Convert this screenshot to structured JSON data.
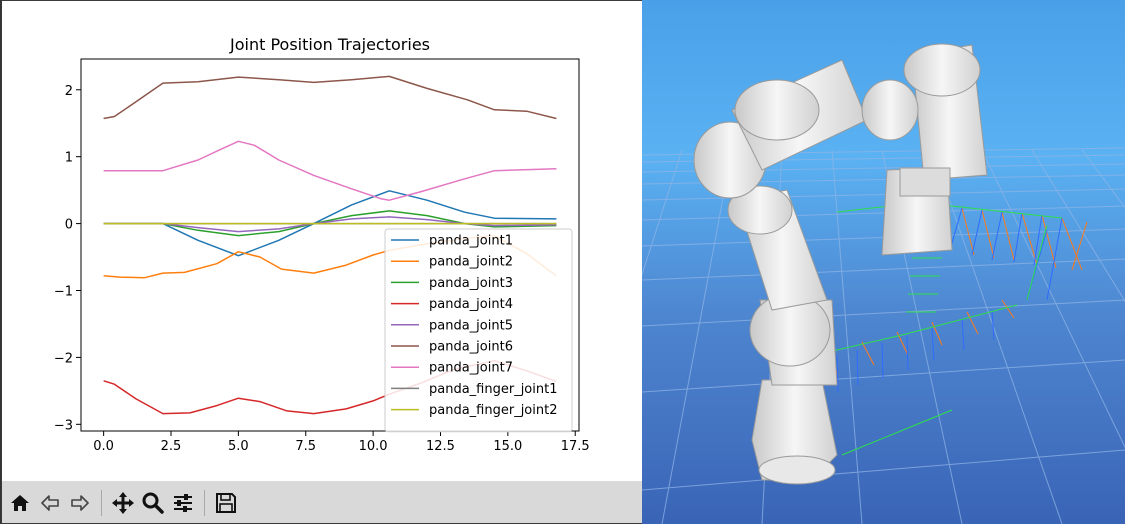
{
  "toolbar": {
    "buttons": [
      {
        "name": "home",
        "icon": "home-icon"
      },
      {
        "name": "back",
        "icon": "back-arrow-icon"
      },
      {
        "name": "forward",
        "icon": "forward-arrow-icon"
      },
      {
        "name": "pan",
        "icon": "move-arrows-icon"
      },
      {
        "name": "zoom",
        "icon": "magnifier-icon"
      },
      {
        "name": "configure-subplots",
        "icon": "sliders-icon"
      },
      {
        "name": "save",
        "icon": "floppy-disk-icon"
      }
    ]
  },
  "chart_data": {
    "type": "line",
    "title": "Joint Position Trajectories",
    "xlabel": "",
    "ylabel": "",
    "xlim": [
      -0.84,
      17.64
    ],
    "ylim": [
      -3.1,
      2.46
    ],
    "xticks": [
      "0.0",
      "2.5",
      "5.0",
      "7.5",
      "10.0",
      "12.5",
      "15.0",
      "17.5"
    ],
    "xtick_values": [
      0,
      2.5,
      5,
      7.5,
      10,
      12.5,
      15,
      17.5
    ],
    "yticks": [
      "2",
      "1",
      "0",
      "−1",
      "−2",
      "−3"
    ],
    "ytick_values": [
      2,
      1,
      0,
      -1,
      -2,
      -3
    ],
    "grid": false,
    "legend_position": "lower-right",
    "series": [
      {
        "name": "panda_joint1",
        "color": "#1f77b4",
        "x": [
          0,
          1,
          2.2,
          3.5,
          5.0,
          6.5,
          7.8,
          9.2,
          10.6,
          12.0,
          13.4,
          14.5,
          16.8
        ],
        "y": [
          0.0,
          0.0,
          0.0,
          -0.25,
          -0.48,
          -0.25,
          0.0,
          0.28,
          0.49,
          0.35,
          0.17,
          0.08,
          0.07
        ]
      },
      {
        "name": "panda_joint2",
        "color": "#ff7f0e",
        "x": [
          0,
          0.6,
          1.5,
          2.2,
          3.0,
          4.2,
          5.0,
          5.8,
          6.6,
          7.8,
          9.0,
          10.0,
          10.6,
          12.0,
          13.5,
          14.5,
          15.7,
          16.8
        ],
        "y": [
          -0.78,
          -0.8,
          -0.81,
          -0.74,
          -0.73,
          -0.6,
          -0.42,
          -0.5,
          -0.68,
          -0.74,
          -0.62,
          -0.47,
          -0.4,
          -0.3,
          -0.22,
          -0.18,
          -0.45,
          -0.78
        ]
      },
      {
        "name": "panda_joint3",
        "color": "#2ca02c",
        "x": [
          0,
          2.2,
          3.5,
          5.0,
          6.5,
          7.8,
          9.2,
          10.6,
          12.0,
          13.4,
          14.5,
          16.8
        ],
        "y": [
          0.0,
          0.0,
          -0.1,
          -0.18,
          -0.12,
          0.0,
          0.12,
          0.19,
          0.12,
          0.0,
          -0.05,
          -0.03
        ]
      },
      {
        "name": "panda_joint4",
        "color": "#d62728",
        "x": [
          0,
          0.4,
          1.2,
          2.2,
          3.2,
          4.2,
          5.0,
          5.8,
          6.8,
          7.8,
          9.0,
          10.0,
          10.6,
          11.8,
          13.0,
          14.5,
          15.7,
          16.8
        ],
        "y": [
          -2.35,
          -2.4,
          -2.62,
          -2.84,
          -2.83,
          -2.72,
          -2.61,
          -2.66,
          -2.8,
          -2.84,
          -2.77,
          -2.65,
          -2.55,
          -2.38,
          -2.18,
          -2.05,
          -2.2,
          -2.36
        ]
      },
      {
        "name": "panda_joint5",
        "color": "#9467bd",
        "x": [
          0,
          2.2,
          3.5,
          5.0,
          6.5,
          7.8,
          9.2,
          10.6,
          12.0,
          13.4,
          14.5,
          16.8
        ],
        "y": [
          0.0,
          0.0,
          -0.06,
          -0.12,
          -0.08,
          0.0,
          0.07,
          0.1,
          0.06,
          0.0,
          -0.03,
          -0.02
        ]
      },
      {
        "name": "panda_joint6",
        "color": "#8c564b",
        "x": [
          0,
          0.4,
          1.2,
          2.2,
          3.5,
          5.0,
          6.5,
          7.8,
          9.2,
          10.6,
          12.0,
          13.5,
          14.5,
          15.7,
          16.8
        ],
        "y": [
          1.57,
          1.6,
          1.82,
          2.1,
          2.12,
          2.19,
          2.15,
          2.11,
          2.15,
          2.2,
          2.02,
          1.85,
          1.7,
          1.68,
          1.57
        ]
      },
      {
        "name": "panda_joint7",
        "color": "#e377c2",
        "x": [
          0,
          1,
          2.2,
          3.5,
          4.4,
          5.0,
          5.6,
          6.5,
          7.8,
          9.2,
          10.3,
          10.6,
          11.8,
          13.4,
          14.5,
          16.8
        ],
        "y": [
          0.79,
          0.79,
          0.79,
          0.95,
          1.12,
          1.23,
          1.17,
          0.95,
          0.72,
          0.52,
          0.37,
          0.35,
          0.48,
          0.67,
          0.79,
          0.82
        ]
      },
      {
        "name": "panda_finger_joint1",
        "color": "#7f7f7f",
        "x": [
          0,
          16.8
        ],
        "y": [
          0.0,
          0.0
        ]
      },
      {
        "name": "panda_finger_joint2",
        "color": "#bcbd22",
        "x": [
          0,
          16.8
        ],
        "y": [
          0.0,
          0.0
        ]
      }
    ]
  }
}
